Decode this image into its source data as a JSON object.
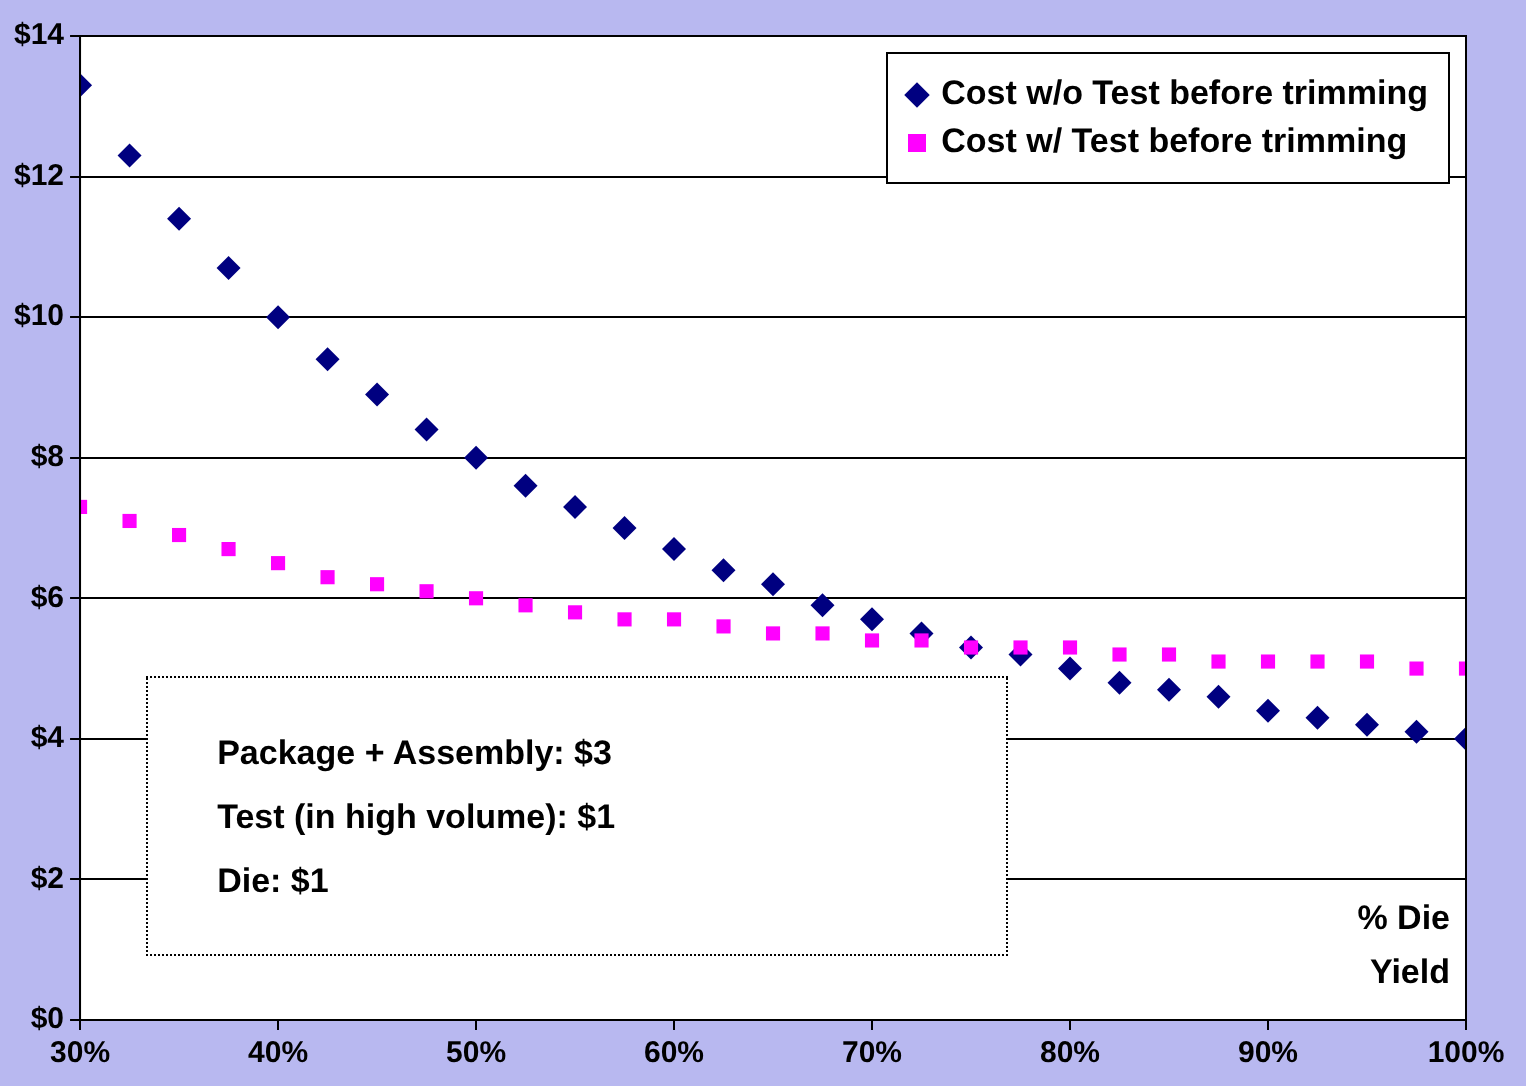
{
  "chart_data": {
    "type": "scatter",
    "xlabel": "% Die Yield",
    "x": [
      30,
      32.5,
      35,
      37.5,
      40,
      42.5,
      45,
      47.5,
      50,
      52.5,
      55,
      57.5,
      60,
      62.5,
      65,
      67.5,
      70,
      72.5,
      75,
      77.5,
      80,
      82.5,
      85,
      87.5,
      90,
      92.5,
      95,
      97.5,
      100
    ],
    "series": [
      {
        "name": "Cost w/o Test before trimming",
        "color": "#000080",
        "marker": "diamond",
        "values": [
          13.3,
          12.3,
          11.4,
          10.7,
          10,
          9.4,
          8.9,
          8.4,
          8,
          7.6,
          7.3,
          7.0,
          6.7,
          6.4,
          6.2,
          5.9,
          5.7,
          5.5,
          5.3,
          5.2,
          5,
          4.8,
          4.7,
          4.6,
          4.4,
          4.3,
          4.2,
          4.1,
          4
        ]
      },
      {
        "name": "Cost w/ Test before trimming",
        "color": "#ff00ff",
        "marker": "square",
        "values": [
          7.3,
          7.1,
          6.9,
          6.7,
          6.5,
          6.3,
          6.2,
          6.1,
          6,
          5.9,
          5.8,
          5.7,
          5.7,
          5.6,
          5.5,
          5.5,
          5.4,
          5.4,
          5.3,
          5.3,
          5.3,
          5.2,
          5.2,
          5.1,
          5.1,
          5.1,
          5.1,
          5.0,
          5
        ]
      }
    ],
    "xlim": [
      30,
      100
    ],
    "xticks": [
      {
        "value": 30,
        "label": "30%"
      },
      {
        "value": 40,
        "label": "40%"
      },
      {
        "value": 50,
        "label": "50%"
      },
      {
        "value": 60,
        "label": "60%"
      },
      {
        "value": 70,
        "label": "70%"
      },
      {
        "value": 80,
        "label": "80%"
      },
      {
        "value": 90,
        "label": "90%"
      },
      {
        "value": 100,
        "label": "100%"
      }
    ],
    "ylim": [
      0,
      14
    ],
    "yticks": [
      {
        "value": 0,
        "label": "$0"
      },
      {
        "value": 2,
        "label": "$2"
      },
      {
        "value": 4,
        "label": "$4"
      },
      {
        "value": 6,
        "label": "$6"
      },
      {
        "value": 8,
        "label": "$8"
      },
      {
        "value": 10,
        "label": "$10"
      },
      {
        "value": 12,
        "label": "$12"
      },
      {
        "value": 14,
        "label": "$14"
      }
    ],
    "grid": "y",
    "legend": "top right",
    "annotations": [
      "Package + Assembly: $3\nTest (in high volume): $1\nDie: $1"
    ]
  }
}
